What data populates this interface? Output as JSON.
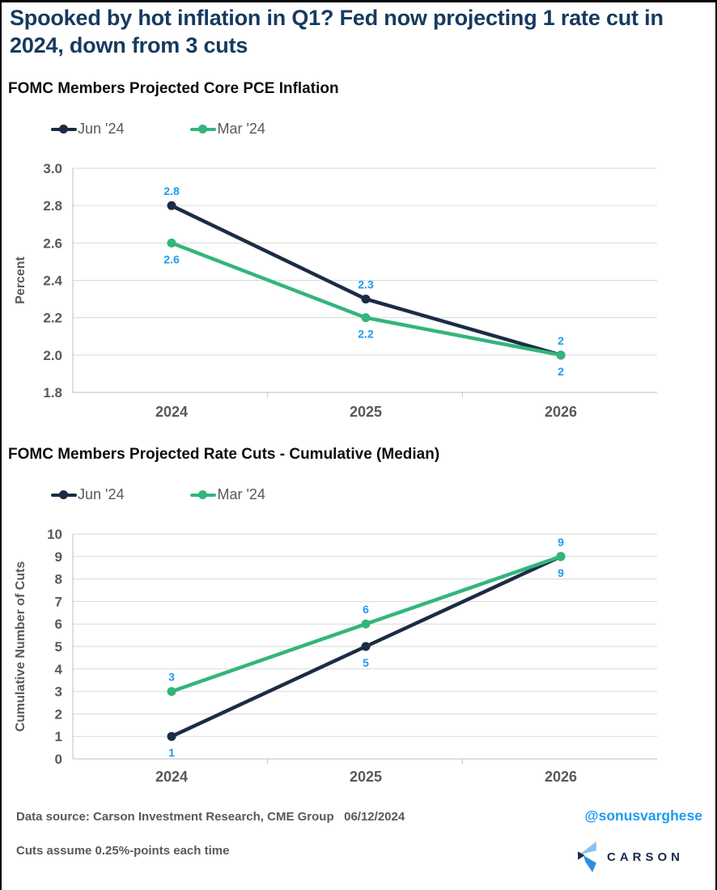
{
  "header": {
    "title": "Spooked by hot inflation in Q1? Fed now projecting 1 rate cut in 2024, down from 3 cuts"
  },
  "colors": {
    "title_navy": "#163a5f",
    "series_navy": "#1b2c44",
    "series_green": "#33b57c",
    "label_blue": "#1e9bf0",
    "axis_text_grey": "#595959",
    "gridline_grey": "#d9d9d9",
    "axis_line_grey": "#bfbfbf",
    "handle_blue": "#1e9bf0",
    "logo_light_blue": "#8ac2ef",
    "logo_dark_navy": "#1a2b49",
    "logo_mid_blue": "#2b8fe2"
  },
  "chart_data": [
    {
      "type": "line",
      "title": "FOMC Members Projected Core PCE Inflation",
      "categories": [
        "2024",
        "2025",
        "2026"
      ],
      "series": [
        {
          "name": "Jun '24",
          "values": [
            2.8,
            2.3,
            2.0
          ],
          "labels": [
            "2.8",
            "2.3",
            "2"
          ],
          "color": "#1b2c44",
          "label_position": "above"
        },
        {
          "name": "Mar '24",
          "values": [
            2.6,
            2.2,
            2.0
          ],
          "labels": [
            "2.6",
            "2.2",
            "2"
          ],
          "color": "#33b57c",
          "label_position": "below"
        }
      ],
      "xlabel": "",
      "ylabel": "Percent",
      "ylim": [
        1.8,
        3.0
      ],
      "yticks": [
        "3.0",
        "2.8",
        "2.6",
        "2.4",
        "2.2",
        "2.0",
        "1.8"
      ],
      "grid": true,
      "legend_position": "top"
    },
    {
      "type": "line",
      "title": "FOMC Members Projected Rate Cuts - Cumulative (Median)",
      "categories": [
        "2024",
        "2025",
        "2026"
      ],
      "series": [
        {
          "name": "Jun '24",
          "values": [
            1,
            5,
            9
          ],
          "labels": [
            "1",
            "5",
            "9"
          ],
          "color": "#1b2c44",
          "label_position": "below"
        },
        {
          "name": "Mar '24",
          "values": [
            3,
            6,
            9
          ],
          "labels": [
            "3",
            "6",
            "9"
          ],
          "color": "#33b57c",
          "label_position": "above"
        }
      ],
      "xlabel": "",
      "ylabel": "Cumulative Number of Cuts",
      "ylim": [
        0,
        10
      ],
      "yticks": [
        "10",
        "9",
        "8",
        "7",
        "6",
        "5",
        "4",
        "3",
        "2",
        "1",
        "0"
      ],
      "grid": true,
      "legend_position": "top"
    }
  ],
  "footer": {
    "data_source": "Data source: Carson Investment Research, CME Group   06/12/2024",
    "note": "Cuts assume 0.25%-points each time",
    "handle": "@sonusvarghese",
    "brand": "CARSON"
  }
}
